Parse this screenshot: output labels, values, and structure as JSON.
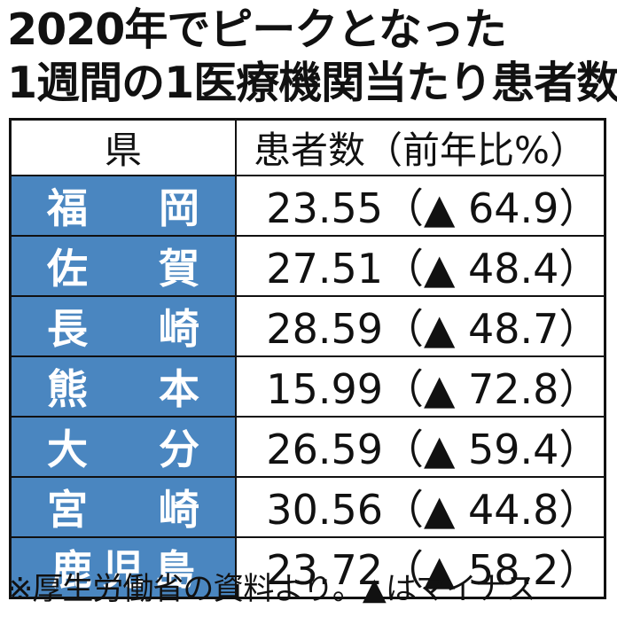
{
  "header": {
    "title_lines": [
      "2020年でピークとなった",
      "1週間の1医療機関当たり患者数"
    ]
  },
  "table": {
    "columns": [
      "県",
      "患者数（前年比%）"
    ],
    "rows": [
      [
        "福岡",
        "23.55",
        "（▲ 64.9）"
      ],
      [
        "佐賀",
        "27.51",
        "（▲ 48.4）"
      ],
      [
        "長崎",
        "28.59",
        "（▲ 48.7）"
      ],
      [
        "熊本",
        "15.99",
        "（▲ 72.8）"
      ],
      [
        "大分",
        "26.59",
        "（▲ 59.4）"
      ],
      [
        "宮崎",
        "30.56",
        "（▲ 44.8）"
      ],
      [
        "鹿児島",
        "23.72",
        "（▲ 58.2）"
      ]
    ]
  },
  "footnote": "※厚生労働省の資料より。▲はマイナス"
}
